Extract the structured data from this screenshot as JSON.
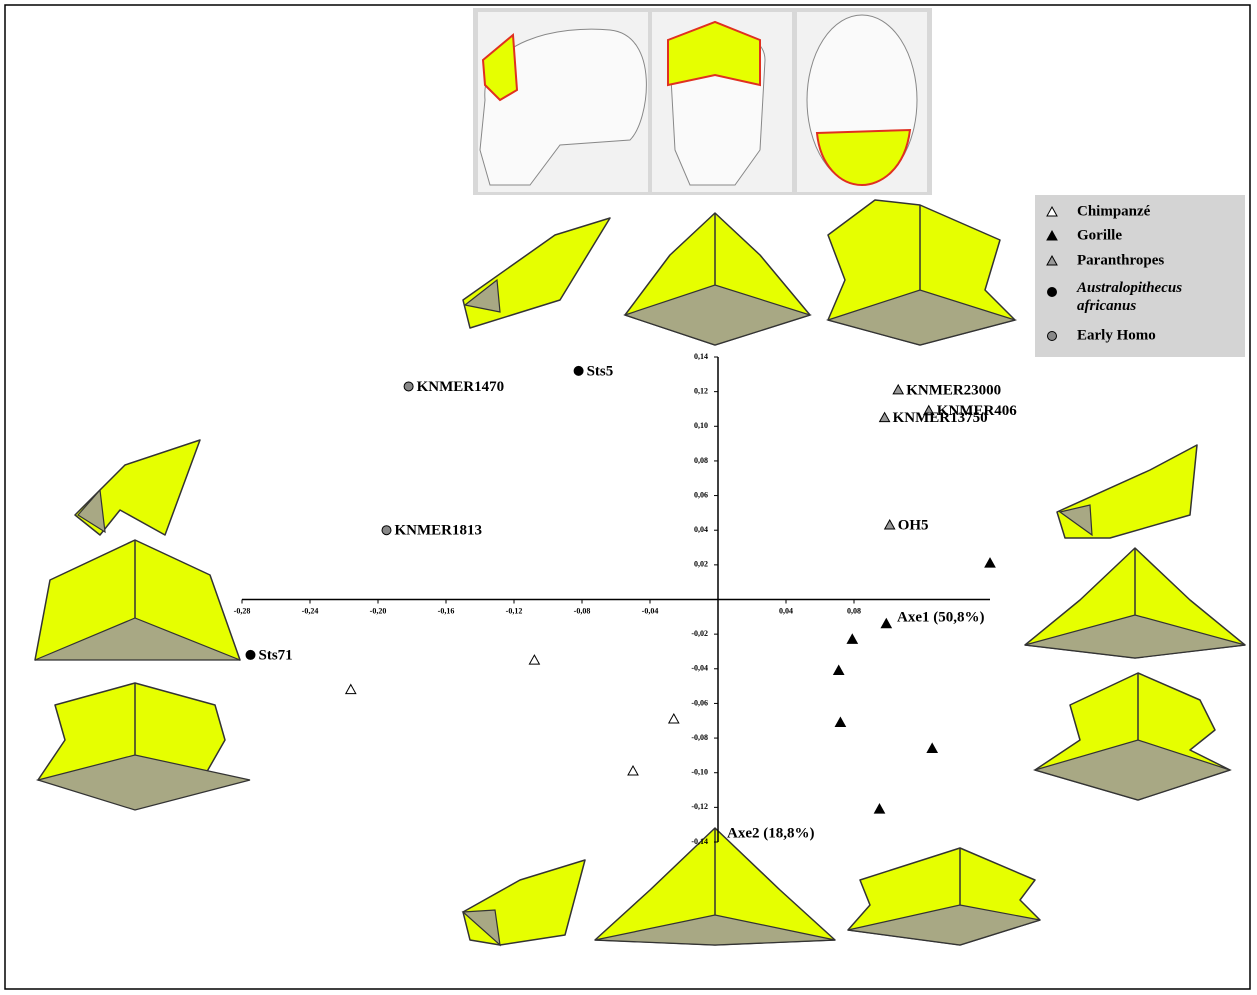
{
  "chart_data": {
    "type": "scatter",
    "x_label": "Axe1 (50,8%)",
    "y_label": "Axe2 (18,8%)",
    "xlim": [
      -0.28,
      0.16
    ],
    "ylim": [
      -0.14,
      0.14
    ],
    "xticks": [
      {
        "value": -0.28,
        "label": "-0,28"
      },
      {
        "value": -0.24,
        "label": "-0,24"
      },
      {
        "value": -0.2,
        "label": "-0,20"
      },
      {
        "value": -0.16,
        "label": "-0,16"
      },
      {
        "value": -0.12,
        "label": "-0,12"
      },
      {
        "value": -0.08,
        "label": "-0,08"
      },
      {
        "value": -0.04,
        "label": "-0,04"
      },
      {
        "value": 0.04,
        "label": "0,04"
      },
      {
        "value": 0.08,
        "label": "0,08"
      }
    ],
    "yticks": [
      {
        "value": 0.14,
        "label": "0,14"
      },
      {
        "value": 0.12,
        "label": "0,12"
      },
      {
        "value": 0.1,
        "label": "0,10"
      },
      {
        "value": 0.08,
        "label": "0,08"
      },
      {
        "value": 0.06,
        "label": "0,06"
      },
      {
        "value": 0.04,
        "label": "0,04"
      },
      {
        "value": 0.02,
        "label": "0,02"
      },
      {
        "value": -0.02,
        "label": "-0,02"
      },
      {
        "value": -0.04,
        "label": "-0,04"
      },
      {
        "value": -0.06,
        "label": "-0,06"
      },
      {
        "value": -0.08,
        "label": "-0,08"
      },
      {
        "value": -0.1,
        "label": "-0,10"
      },
      {
        "value": -0.12,
        "label": "-0,12"
      },
      {
        "value": -0.14,
        "label": "-0,14"
      }
    ],
    "series": [
      {
        "name": "Chimpanzé",
        "marker": "triangle",
        "color": "#ffffff",
        "x": [
          -0.216,
          -0.108,
          -0.026,
          -0.05
        ],
        "y": [
          -0.052,
          -0.035,
          -0.069,
          -0.099
        ],
        "labels": [
          null,
          null,
          null,
          null
        ]
      },
      {
        "name": "Gorille",
        "marker": "triangle",
        "color": "#000000",
        "x": [
          0.16,
          0.099,
          0.079,
          0.071,
          0.072,
          0.126,
          0.095
        ],
        "y": [
          0.021,
          -0.014,
          -0.023,
          -0.041,
          -0.071,
          -0.086,
          -0.121
        ],
        "labels": [
          null,
          null,
          null,
          null,
          null,
          null,
          null
        ]
      },
      {
        "name": "Paranthropes",
        "marker": "triangle",
        "color": "#999999",
        "x": [
          0.106,
          0.124,
          0.098,
          0.101
        ],
        "y": [
          0.121,
          0.109,
          0.105,
          0.043
        ],
        "labels": [
          "KNMER23000",
          "KNMER406",
          "KNMER13750",
          "OH5"
        ]
      },
      {
        "name": "Australopithecus africanus",
        "marker": "circle",
        "color": "#000000",
        "x": [
          -0.082,
          -0.275
        ],
        "y": [
          0.132,
          -0.032
        ],
        "labels": [
          "Sts5",
          "Sts71"
        ]
      },
      {
        "name": "Early Homo",
        "marker": "circle",
        "color": "#888888",
        "x": [
          -0.182,
          -0.195
        ],
        "y": [
          0.123,
          0.04
        ],
        "labels": [
          "KNMER1470",
          "KNMER1813"
        ]
      }
    ]
  }
}
